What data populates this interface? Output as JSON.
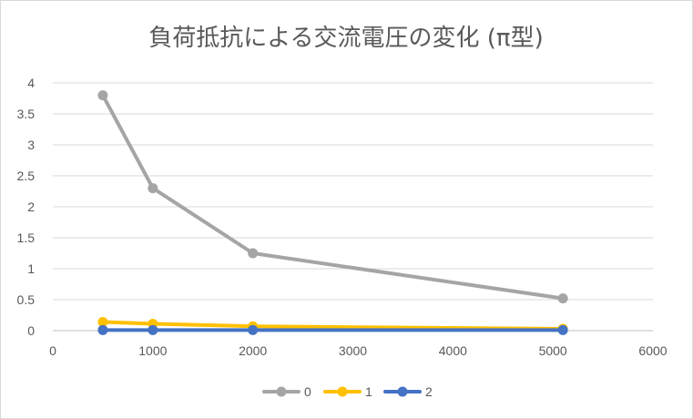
{
  "chart_data": {
    "type": "scatter",
    "title": "負荷抵抗による交流電圧の変化 (π型)",
    "xlabel": "",
    "ylabel": "",
    "xlim": [
      0,
      6000
    ],
    "ylim": [
      0,
      4
    ],
    "x_ticks": [
      "0",
      "1000",
      "2000",
      "3000",
      "4000",
      "5000",
      "6000"
    ],
    "y_ticks": [
      "0",
      "0.5",
      "1",
      "1.5",
      "2",
      "2.5",
      "3",
      "3.5",
      "4"
    ],
    "grid": true,
    "legend_position": "bottom",
    "series": [
      {
        "name": "0",
        "color": "#a5a5a5",
        "x": [
          500,
          1000,
          2000,
          5100
        ],
        "y": [
          3.8,
          2.3,
          1.25,
          0.52
        ]
      },
      {
        "name": "1",
        "color": "#ffc000",
        "x": [
          500,
          1000,
          2000,
          5100
        ],
        "y": [
          0.14,
          0.11,
          0.07,
          0.03
        ]
      },
      {
        "name": "2",
        "color": "#4472c4",
        "x": [
          500,
          1000,
          2000,
          5100
        ],
        "y": [
          0.01,
          0.01,
          0.01,
          0.01
        ]
      }
    ]
  }
}
